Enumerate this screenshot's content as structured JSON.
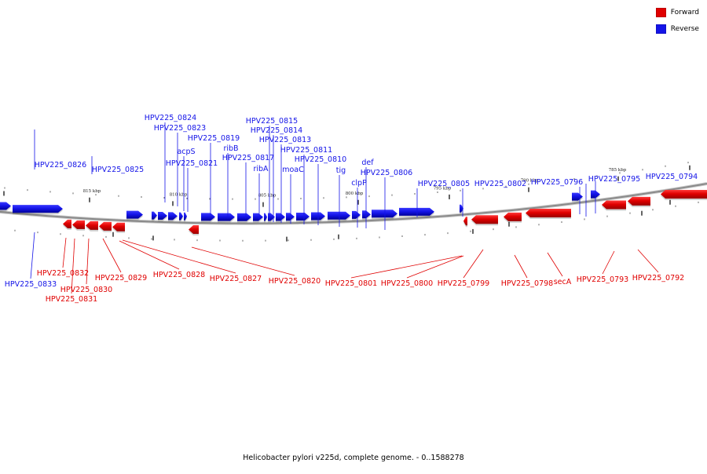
{
  "colors": {
    "forward": "#e00000",
    "reverse": "#1414e8",
    "axis": "#8a8a8a"
  },
  "legend": [
    {
      "label": "Forward",
      "color": "#e00000"
    },
    {
      "label": "Reverse",
      "color": "#1414e8"
    }
  ],
  "caption": "Helicobacter pylori v225d, complete genome. - 0..1588278",
  "scale_labels": [
    "815 kbp",
    "810 kbp",
    "805 kbp",
    "800 kbp",
    "795 kbp",
    "790 kbp",
    "785 kbp"
  ],
  "reverse_genes": [
    "HPV225_0826",
    "HPV225_0825",
    "HPV225_0824",
    "HPV225_0823",
    "acpS",
    "HPV225_0821",
    "HPV225_0819",
    "ribB",
    "HPV225_0817",
    "ribA",
    "HPV225_0815",
    "HPV225_0814",
    "HPV225_0813",
    "moaC",
    "HPV225_0811",
    "HPV225_0810",
    "tig",
    "clpP",
    "def",
    "HPV225_0806",
    "HPV225_0805",
    "HPV225_0802",
    "HPV225_0796",
    "HPV225_0795",
    "HPV225_0794"
  ],
  "forward_genes": [
    "HPV225_0833",
    "HPV225_0832",
    "HPV225_0831",
    "HPV225_0830",
    "HPV225_0829",
    "HPV225_0828",
    "HPV225_0827",
    "HPV225_0820",
    "HPV225_0801",
    "HPV225_0800",
    "HPV225_0799",
    "HPV225_0798",
    "secA",
    "HPV225_0793",
    "HPV225_0792"
  ]
}
